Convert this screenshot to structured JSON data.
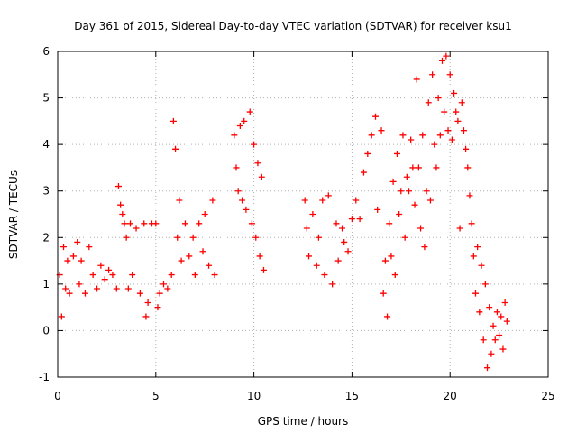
{
  "chart_data": {
    "type": "scatter",
    "title": "Day 361 of 2015, Sidereal Day-to-day VTEC variation (SDTVAR) for receiver ksu1",
    "xlabel": "GPS time / hours",
    "ylabel": "SDTVAR / TECUs",
    "xlim": [
      0,
      25
    ],
    "ylim": [
      -1,
      6
    ],
    "xticks": [
      0,
      5,
      10,
      15,
      20,
      25
    ],
    "yticks": [
      -1,
      0,
      1,
      2,
      3,
      4,
      5,
      6
    ],
    "grid": true,
    "marker": "+",
    "color": "#ff0000",
    "series": [
      {
        "name": "SDTVAR",
        "points": [
          [
            0.1,
            1.2
          ],
          [
            0.2,
            0.3
          ],
          [
            0.3,
            1.8
          ],
          [
            0.4,
            0.9
          ],
          [
            0.5,
            1.5
          ],
          [
            0.6,
            0.8
          ],
          [
            0.8,
            1.6
          ],
          [
            1.0,
            1.9
          ],
          [
            1.1,
            1.0
          ],
          [
            1.2,
            1.5
          ],
          [
            1.4,
            0.8
          ],
          [
            1.6,
            1.8
          ],
          [
            1.8,
            1.2
          ],
          [
            2.0,
            0.9
          ],
          [
            2.2,
            1.4
          ],
          [
            2.4,
            1.1
          ],
          [
            2.6,
            1.3
          ],
          [
            2.8,
            1.2
          ],
          [
            3.0,
            0.9
          ],
          [
            3.1,
            3.1
          ],
          [
            3.2,
            2.7
          ],
          [
            3.3,
            2.5
          ],
          [
            3.4,
            2.3
          ],
          [
            3.5,
            2.0
          ],
          [
            3.6,
            0.9
          ],
          [
            3.7,
            2.3
          ],
          [
            3.8,
            1.2
          ],
          [
            4.0,
            2.2
          ],
          [
            4.2,
            0.8
          ],
          [
            4.4,
            2.3
          ],
          [
            4.5,
            0.3
          ],
          [
            4.6,
            0.6
          ],
          [
            4.8,
            2.3
          ],
          [
            5.0,
            2.3
          ],
          [
            5.1,
            0.5
          ],
          [
            5.2,
            0.8
          ],
          [
            5.4,
            1.0
          ],
          [
            5.6,
            0.9
          ],
          [
            5.8,
            1.2
          ],
          [
            5.9,
            4.5
          ],
          [
            6.0,
            3.9
          ],
          [
            6.1,
            2.0
          ],
          [
            6.2,
            2.8
          ],
          [
            6.3,
            1.5
          ],
          [
            6.5,
            2.3
          ],
          [
            6.7,
            1.6
          ],
          [
            6.9,
            2.0
          ],
          [
            7.0,
            1.2
          ],
          [
            7.2,
            2.3
          ],
          [
            7.4,
            1.7
          ],
          [
            7.5,
            2.5
          ],
          [
            7.7,
            1.4
          ],
          [
            7.9,
            2.8
          ],
          [
            8.0,
            1.2
          ],
          [
            9.0,
            4.2
          ],
          [
            9.1,
            3.5
          ],
          [
            9.2,
            3.0
          ],
          [
            9.3,
            4.4
          ],
          [
            9.4,
            2.8
          ],
          [
            9.5,
            4.5
          ],
          [
            9.6,
            2.6
          ],
          [
            9.8,
            4.7
          ],
          [
            9.9,
            2.3
          ],
          [
            10.0,
            4.0
          ],
          [
            10.1,
            2.0
          ],
          [
            10.2,
            3.6
          ],
          [
            10.3,
            1.6
          ],
          [
            10.4,
            3.3
          ],
          [
            10.5,
            1.3
          ],
          [
            12.6,
            2.8
          ],
          [
            12.7,
            2.2
          ],
          [
            12.8,
            1.6
          ],
          [
            13.0,
            2.5
          ],
          [
            13.2,
            1.4
          ],
          [
            13.3,
            2.0
          ],
          [
            13.5,
            2.8
          ],
          [
            13.6,
            1.2
          ],
          [
            13.8,
            2.9
          ],
          [
            14.0,
            1.0
          ],
          [
            14.2,
            2.3
          ],
          [
            14.3,
            1.5
          ],
          [
            14.5,
            2.2
          ],
          [
            14.6,
            1.9
          ],
          [
            14.8,
            1.7
          ],
          [
            15.0,
            2.4
          ],
          [
            15.2,
            2.8
          ],
          [
            15.4,
            2.4
          ],
          [
            15.6,
            3.4
          ],
          [
            15.8,
            3.8
          ],
          [
            16.0,
            4.2
          ],
          [
            16.2,
            4.6
          ],
          [
            16.3,
            2.6
          ],
          [
            16.5,
            4.3
          ],
          [
            16.6,
            0.8
          ],
          [
            16.7,
            1.5
          ],
          [
            16.8,
            0.3
          ],
          [
            16.9,
            2.3
          ],
          [
            17.0,
            1.6
          ],
          [
            17.1,
            3.2
          ],
          [
            17.2,
            1.2
          ],
          [
            17.3,
            3.8
          ],
          [
            17.4,
            2.5
          ],
          [
            17.5,
            3.0
          ],
          [
            17.6,
            4.2
          ],
          [
            17.7,
            2.0
          ],
          [
            17.8,
            3.3
          ],
          [
            17.9,
            3.0
          ],
          [
            18.0,
            4.1
          ],
          [
            18.1,
            3.5
          ],
          [
            18.2,
            2.7
          ],
          [
            18.3,
            5.4
          ],
          [
            18.4,
            3.5
          ],
          [
            18.5,
            2.2
          ],
          [
            18.6,
            4.2
          ],
          [
            18.7,
            1.8
          ],
          [
            18.8,
            3.0
          ],
          [
            18.9,
            4.9
          ],
          [
            19.0,
            2.8
          ],
          [
            19.1,
            5.5
          ],
          [
            19.2,
            4.0
          ],
          [
            19.3,
            3.5
          ],
          [
            19.4,
            5.0
          ],
          [
            19.5,
            4.2
          ],
          [
            19.6,
            5.8
          ],
          [
            19.7,
            4.7
          ],
          [
            19.8,
            5.9
          ],
          [
            19.9,
            4.3
          ],
          [
            20.0,
            5.5
          ],
          [
            20.1,
            4.1
          ],
          [
            20.2,
            5.1
          ],
          [
            20.3,
            4.7
          ],
          [
            20.4,
            4.5
          ],
          [
            20.5,
            2.2
          ],
          [
            20.6,
            4.9
          ],
          [
            20.7,
            4.3
          ],
          [
            20.8,
            3.9
          ],
          [
            20.9,
            3.5
          ],
          [
            21.0,
            2.9
          ],
          [
            21.1,
            2.3
          ],
          [
            21.2,
            1.6
          ],
          [
            21.3,
            0.8
          ],
          [
            21.4,
            1.8
          ],
          [
            21.5,
            0.4
          ],
          [
            21.6,
            1.4
          ],
          [
            21.7,
            -0.2
          ],
          [
            21.8,
            1.0
          ],
          [
            21.9,
            -0.8
          ],
          [
            22.0,
            0.5
          ],
          [
            22.1,
            -0.5
          ],
          [
            22.2,
            0.1
          ],
          [
            22.3,
            -0.2
          ],
          [
            22.4,
            0.4
          ],
          [
            22.5,
            -0.1
          ],
          [
            22.6,
            0.3
          ],
          [
            22.7,
            -0.4
          ],
          [
            22.8,
            0.6
          ],
          [
            22.9,
            0.2
          ]
        ]
      }
    ]
  }
}
